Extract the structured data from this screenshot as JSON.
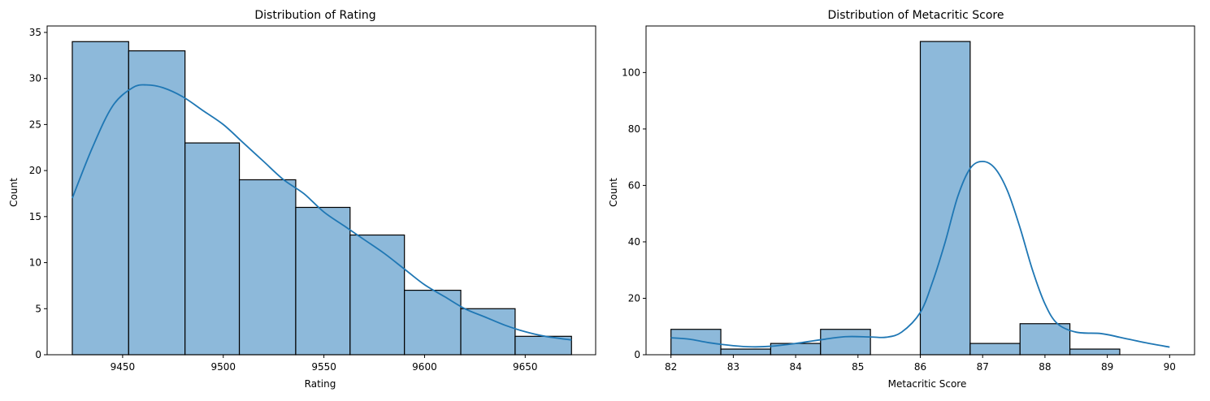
{
  "bar_color": "#8db9da",
  "line_color": "#1f77b4",
  "edge_color": "#000000",
  "chart_data": [
    {
      "type": "bar",
      "title": "Distribution of Rating",
      "xlabel": "Rating",
      "ylabel": "Count",
      "xlim": [
        9412.5,
        9685
      ],
      "ylim": [
        0,
        35.7
      ],
      "xticks": [
        9450,
        9500,
        9550,
        9600,
        9650
      ],
      "yticks": [
        0,
        5,
        10,
        15,
        20,
        25,
        30,
        35
      ],
      "bins": [
        {
          "x0": 9425,
          "x1": 9453,
          "count": 34
        },
        {
          "x0": 9453,
          "x1": 9481,
          "count": 33
        },
        {
          "x0": 9481,
          "x1": 9508,
          "count": 23
        },
        {
          "x0": 9508,
          "x1": 9536,
          "count": 19
        },
        {
          "x0": 9536,
          "x1": 9563,
          "count": 16
        },
        {
          "x0": 9563,
          "x1": 9590,
          "count": 13
        },
        {
          "x0": 9590,
          "x1": 9618,
          "count": 7
        },
        {
          "x0": 9618,
          "x1": 9645,
          "count": 5
        },
        {
          "x0": 9645,
          "x1": 9673,
          "count": 2
        }
      ],
      "kde": [
        [
          9425,
          17
        ],
        [
          9435,
          22.5
        ],
        [
          9445,
          27
        ],
        [
          9455,
          29
        ],
        [
          9462,
          29.3
        ],
        [
          9470,
          29
        ],
        [
          9480,
          28
        ],
        [
          9490,
          26.5
        ],
        [
          9500,
          25
        ],
        [
          9510,
          23
        ],
        [
          9520,
          21
        ],
        [
          9530,
          19
        ],
        [
          9540,
          17.5
        ],
        [
          9550,
          15.5
        ],
        [
          9560,
          14
        ],
        [
          9570,
          12.5
        ],
        [
          9580,
          11
        ],
        [
          9590,
          9.3
        ],
        [
          9600,
          7.6
        ],
        [
          9610,
          6.3
        ],
        [
          9620,
          5
        ],
        [
          9630,
          4.1
        ],
        [
          9640,
          3.2
        ],
        [
          9650,
          2.5
        ],
        [
          9660,
          2
        ],
        [
          9673,
          1.6
        ]
      ]
    },
    {
      "type": "bar",
      "title": "Distribution of Metacritic Score",
      "xlabel": "Metacritic Score",
      "ylabel": "Count",
      "xlim": [
        81.6,
        90.4
      ],
      "ylim": [
        0,
        116.5
      ],
      "xticks": [
        82,
        83,
        84,
        85,
        86,
        87,
        88,
        89,
        90
      ],
      "yticks": [
        0,
        20,
        40,
        60,
        80,
        100
      ],
      "bins": [
        {
          "x0": 82.0,
          "x1": 82.8,
          "count": 9
        },
        {
          "x0": 82.8,
          "x1": 83.6,
          "count": 2
        },
        {
          "x0": 83.6,
          "x1": 84.4,
          "count": 4
        },
        {
          "x0": 84.4,
          "x1": 85.2,
          "count": 9
        },
        {
          "x0": 85.2,
          "x1": 86.0,
          "count": 0
        },
        {
          "x0": 86.0,
          "x1": 86.8,
          "count": 111
        },
        {
          "x0": 86.8,
          "x1": 87.6,
          "count": 4
        },
        {
          "x0": 87.6,
          "x1": 88.4,
          "count": 11
        },
        {
          "x0": 88.4,
          "x1": 89.2,
          "count": 2
        }
      ],
      "kde_note": "",
      "kde": [
        [
          82.0,
          6
        ],
        [
          82.3,
          5.5
        ],
        [
          82.6,
          4.3
        ],
        [
          83.0,
          3.2
        ],
        [
          83.3,
          2.8
        ],
        [
          83.6,
          3
        ],
        [
          84.0,
          4
        ],
        [
          84.4,
          5.3
        ],
        [
          84.8,
          6.4
        ],
        [
          85.2,
          6.3
        ],
        [
          85.45,
          6.2
        ],
        [
          85.7,
          8
        ],
        [
          86.0,
          15
        ],
        [
          86.2,
          26
        ],
        [
          86.4,
          40
        ],
        [
          86.6,
          56
        ],
        [
          86.8,
          66
        ],
        [
          87.0,
          68.5
        ],
        [
          87.2,
          66
        ],
        [
          87.4,
          58
        ],
        [
          87.6,
          45
        ],
        [
          87.8,
          30
        ],
        [
          88.0,
          18
        ],
        [
          88.2,
          11
        ],
        [
          88.5,
          8
        ],
        [
          88.9,
          7.5
        ],
        [
          89.2,
          6.2
        ],
        [
          89.6,
          4.3
        ],
        [
          90.0,
          2.7
        ]
      ]
    }
  ]
}
